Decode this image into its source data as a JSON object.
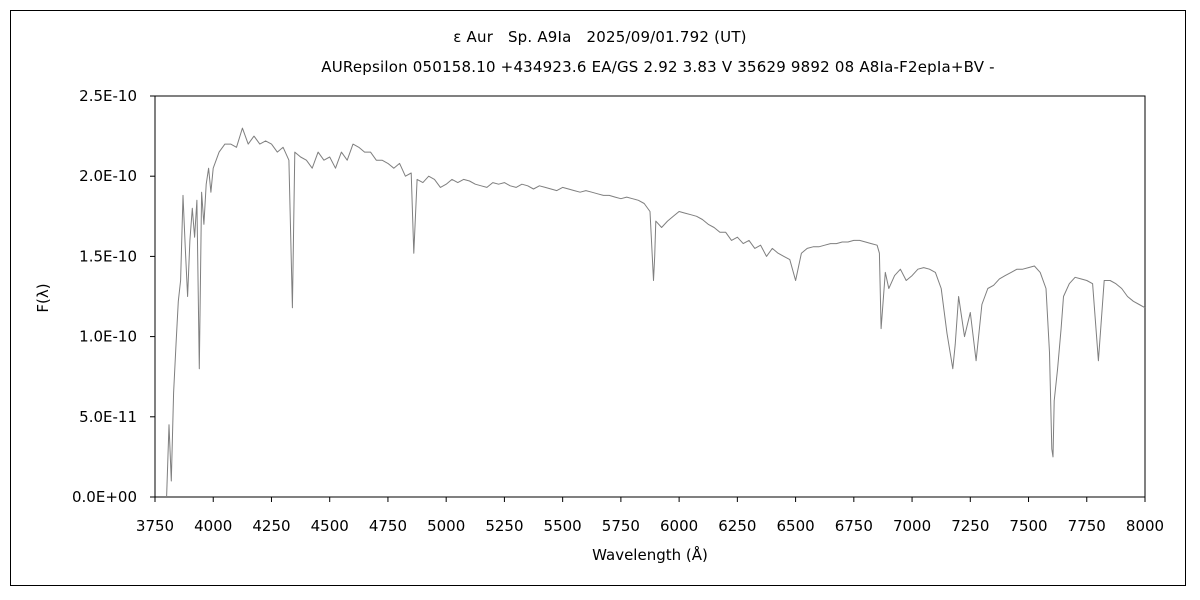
{
  "chart_data": {
    "type": "line",
    "title": "ε Aur   Sp. A9Ia   2025/09/01.792 (UT)",
    "subtitle": "AURepsilon 050158.10 +434923.6 EA/GS 2.92 3.83 V 35629 9892 08 A8Ia-F2epIa+BV -",
    "xlabel": "Wavelength (Å)",
    "ylabel": "F(λ)",
    "xlim": [
      3750,
      8000
    ],
    "ylim": [
      0,
      2.5e-10
    ],
    "x_ticks": [
      "3750",
      "4000",
      "4250",
      "4500",
      "4750",
      "5000",
      "5250",
      "5500",
      "5750",
      "6000",
      "6250",
      "6500",
      "6750",
      "7000",
      "7250",
      "7500",
      "7750",
      "8000"
    ],
    "y_ticks": [
      "0.0E+00",
      "5.0E-11",
      "1.0E-10",
      "1.5E-10",
      "2.0E-10",
      "2.5E-10"
    ],
    "grid": false,
    "series": [
      {
        "color": "#7f7f7f",
        "x": [
          3800,
          3810,
          3820,
          3830,
          3840,
          3850,
          3860,
          3870,
          3880,
          3890,
          3900,
          3910,
          3920,
          3930,
          3940,
          3950,
          3960,
          3970,
          3980,
          3990,
          4000,
          4025,
          4050,
          4075,
          4100,
          4125,
          4150,
          4175,
          4200,
          4225,
          4250,
          4275,
          4300,
          4325,
          4340,
          4350,
          4375,
          4400,
          4425,
          4450,
          4475,
          4500,
          4525,
          4550,
          4575,
          4600,
          4625,
          4650,
          4675,
          4700,
          4725,
          4750,
          4775,
          4800,
          4825,
          4850,
          4861,
          4875,
          4900,
          4925,
          4950,
          4975,
          5000,
          5025,
          5050,
          5075,
          5100,
          5125,
          5150,
          5175,
          5200,
          5225,
          5250,
          5275,
          5300,
          5325,
          5350,
          5375,
          5400,
          5425,
          5450,
          5475,
          5500,
          5525,
          5550,
          5575,
          5600,
          5625,
          5650,
          5675,
          5700,
          5725,
          5750,
          5775,
          5800,
          5825,
          5850,
          5875,
          5890,
          5895,
          5900,
          5925,
          5950,
          5975,
          6000,
          6025,
          6050,
          6075,
          6100,
          6125,
          6150,
          6175,
          6200,
          6225,
          6250,
          6275,
          6300,
          6325,
          6350,
          6375,
          6400,
          6425,
          6450,
          6475,
          6500,
          6525,
          6550,
          6575,
          6600,
          6625,
          6650,
          6675,
          6700,
          6725,
          6750,
          6775,
          6800,
          6825,
          6850,
          6860,
          6867,
          6875,
          6885,
          6900,
          6925,
          6950,
          6975,
          7000,
          7025,
          7050,
          7075,
          7100,
          7125,
          7150,
          7175,
          7185,
          7200,
          7225,
          7250,
          7275,
          7300,
          7325,
          7350,
          7375,
          7400,
          7425,
          7450,
          7475,
          7500,
          7525,
          7550,
          7575,
          7590,
          7600,
          7605,
          7610,
          7625,
          7640,
          7650,
          7675,
          7700,
          7725,
          7750,
          7775,
          7800,
          7825,
          7850,
          7875,
          7900,
          7925,
          7950,
          7975,
          8000
        ],
        "y": [
          0.0,
          4.5e-11,
          1e-11,
          6.5e-11,
          9.5e-11,
          1.22e-10,
          1.35e-10,
          1.88e-10,
          1.55e-10,
          1.25e-10,
          1.6e-10,
          1.8e-10,
          1.62e-10,
          1.85e-10,
          8e-11,
          1.9e-10,
          1.7e-10,
          1.95e-10,
          2.05e-10,
          1.9e-10,
          2.05e-10,
          2.15e-10,
          2.2e-10,
          2.2e-10,
          2.18e-10,
          2.3e-10,
          2.2e-10,
          2.25e-10,
          2.2e-10,
          2.22e-10,
          2.2e-10,
          2.15e-10,
          2.18e-10,
          2.1e-10,
          1.18e-10,
          2.15e-10,
          2.12e-10,
          2.1e-10,
          2.05e-10,
          2.15e-10,
          2.1e-10,
          2.12e-10,
          2.05e-10,
          2.15e-10,
          2.1e-10,
          2.2e-10,
          2.18e-10,
          2.15e-10,
          2.15e-10,
          2.1e-10,
          2.1e-10,
          2.08e-10,
          2.05e-10,
          2.08e-10,
          2e-10,
          2.02e-10,
          1.52e-10,
          1.98e-10,
          1.96e-10,
          2e-10,
          1.98e-10,
          1.93e-10,
          1.95e-10,
          1.98e-10,
          1.96e-10,
          1.98e-10,
          1.97e-10,
          1.95e-10,
          1.94e-10,
          1.93e-10,
          1.96e-10,
          1.95e-10,
          1.96e-10,
          1.94e-10,
          1.93e-10,
          1.95e-10,
          1.94e-10,
          1.92e-10,
          1.94e-10,
          1.93e-10,
          1.92e-10,
          1.91e-10,
          1.93e-10,
          1.92e-10,
          1.91e-10,
          1.9e-10,
          1.91e-10,
          1.9e-10,
          1.89e-10,
          1.88e-10,
          1.88e-10,
          1.87e-10,
          1.86e-10,
          1.87e-10,
          1.86e-10,
          1.85e-10,
          1.83e-10,
          1.78e-10,
          1.35e-10,
          1.5e-10,
          1.72e-10,
          1.68e-10,
          1.72e-10,
          1.75e-10,
          1.78e-10,
          1.77e-10,
          1.76e-10,
          1.75e-10,
          1.73e-10,
          1.7e-10,
          1.68e-10,
          1.65e-10,
          1.65e-10,
          1.6e-10,
          1.62e-10,
          1.58e-10,
          1.6e-10,
          1.55e-10,
          1.57e-10,
          1.5e-10,
          1.55e-10,
          1.52e-10,
          1.5e-10,
          1.48e-10,
          1.35e-10,
          1.52e-10,
          1.55e-10,
          1.56e-10,
          1.56e-10,
          1.57e-10,
          1.58e-10,
          1.58e-10,
          1.59e-10,
          1.59e-10,
          1.6e-10,
          1.6e-10,
          1.59e-10,
          1.58e-10,
          1.57e-10,
          1.52e-10,
          1.05e-10,
          1.2e-10,
          1.4e-10,
          1.3e-10,
          1.38e-10,
          1.42e-10,
          1.35e-10,
          1.38e-10,
          1.42e-10,
          1.43e-10,
          1.42e-10,
          1.4e-10,
          1.3e-10,
          1.02e-10,
          8e-11,
          9.5e-11,
          1.25e-10,
          1e-10,
          1.15e-10,
          8.5e-11,
          1.2e-10,
          1.3e-10,
          1.32e-10,
          1.36e-10,
          1.38e-10,
          1.4e-10,
          1.42e-10,
          1.42e-10,
          1.43e-10,
          1.44e-10,
          1.4e-10,
          1.3e-10,
          9e-11,
          3e-11,
          2.5e-11,
          6e-11,
          8e-11,
          1.05e-10,
          1.25e-10,
          1.33e-10,
          1.37e-10,
          1.36e-10,
          1.35e-10,
          1.33e-10,
          8.5e-11,
          1.35e-10,
          1.35e-10,
          1.33e-10,
          1.3e-10,
          1.25e-10,
          1.22e-10,
          1.2e-10,
          1.18e-10
        ]
      }
    ]
  }
}
